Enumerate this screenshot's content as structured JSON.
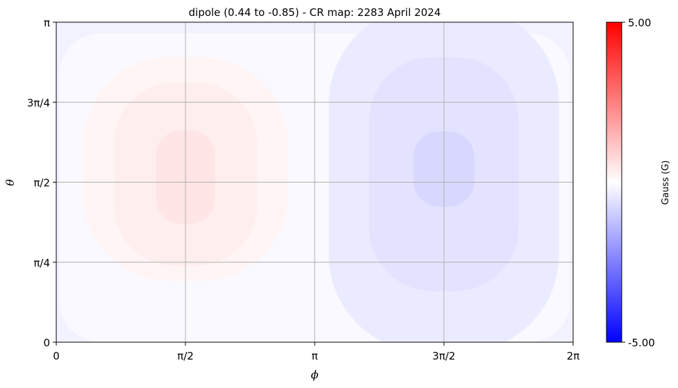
{
  "chart_data": {
    "type": "heatmap",
    "title": "dipole (0.44 to -0.85) - CR map: 2283 April 2024",
    "xlabel": "ϕ",
    "ylabel": "θ",
    "xlim": [
      0,
      6.2832
    ],
    "ylim": [
      0,
      3.1416
    ],
    "x_ticks": [
      {
        "value": 0,
        "label": "0"
      },
      {
        "value": 1.5708,
        "label": "π/2"
      },
      {
        "value": 3.1416,
        "label": "π"
      },
      {
        "value": 4.7124,
        "label": "3π/2"
      },
      {
        "value": 6.2832,
        "label": "2π"
      }
    ],
    "y_ticks": [
      {
        "value": 0,
        "label": "0"
      },
      {
        "value": 0.7854,
        "label": "π/4"
      },
      {
        "value": 1.5708,
        "label": "π/2"
      },
      {
        "value": 2.3562,
        "label": "3π/4"
      },
      {
        "value": 3.1416,
        "label": "π"
      }
    ],
    "grid": true,
    "colorbar": {
      "label": "Gauss (G)",
      "min": -5.0,
      "max": 5.0,
      "min_label": "-5.00",
      "max_label": "5.00",
      "colormap": "bwr"
    },
    "contour_regions": [
      {
        "level": 0.3,
        "color": "#fff5f5",
        "center": [
          1.571,
          1.7
        ],
        "half_width": 1.25,
        "half_height": 1.1
      },
      {
        "level": 0.5,
        "color": "#ffeeee",
        "center": [
          1.571,
          1.65
        ],
        "half_width": 0.87,
        "half_height": 0.9
      },
      {
        "level": 0.7,
        "color": "#ffe5e5",
        "center": [
          1.571,
          1.62
        ],
        "half_width": 0.36,
        "half_height": 0.46
      },
      {
        "level": -0.3,
        "color": "#ebebff",
        "center": [
          4.712,
          1.6
        ],
        "half_width": 1.4,
        "half_height": 1.7
      },
      {
        "level": -0.5,
        "color": "#e3e3ff",
        "center": [
          4.712,
          1.65
        ],
        "half_width": 0.91,
        "half_height": 1.15
      },
      {
        "level": -0.7,
        "color": "#d8d8ff",
        "center": [
          4.712,
          1.7
        ],
        "half_width": 0.37,
        "half_height": 0.37
      }
    ],
    "background_color": "#f9f9ff",
    "outer_band": {
      "color": "#f2f2ff"
    }
  }
}
